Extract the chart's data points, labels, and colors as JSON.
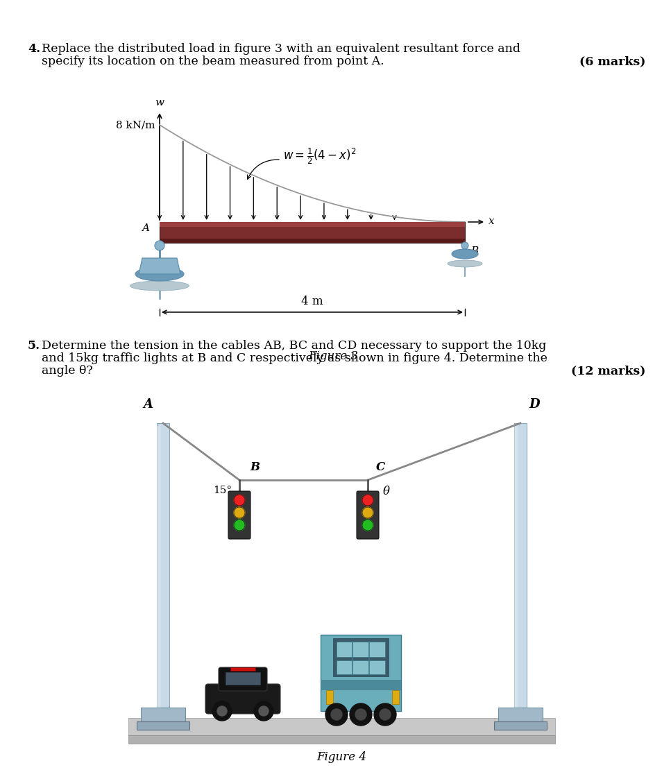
{
  "bg_color": "#ffffff",
  "beam_color": "#7B2C2C",
  "beam_top_color": "#9b4040",
  "beam_edge_color": "#3a1a1a",
  "support_blue": "#8ab4cc",
  "support_blue2": "#6a9ab8",
  "support_gray": "#c8c8c8",
  "cable_color": "#888888",
  "pole_color_light": "#c8dae8",
  "pole_color_dark": "#8aaabb",
  "ground_color": "#d0d0d0",
  "arrow_color": "#111111",
  "load_label": "8 kN/m",
  "dim_label": "4 m",
  "figure3_caption": "Figure 3",
  "figure4_caption": "Figure 4",
  "angle_label": "15°",
  "theta_label": "θ"
}
